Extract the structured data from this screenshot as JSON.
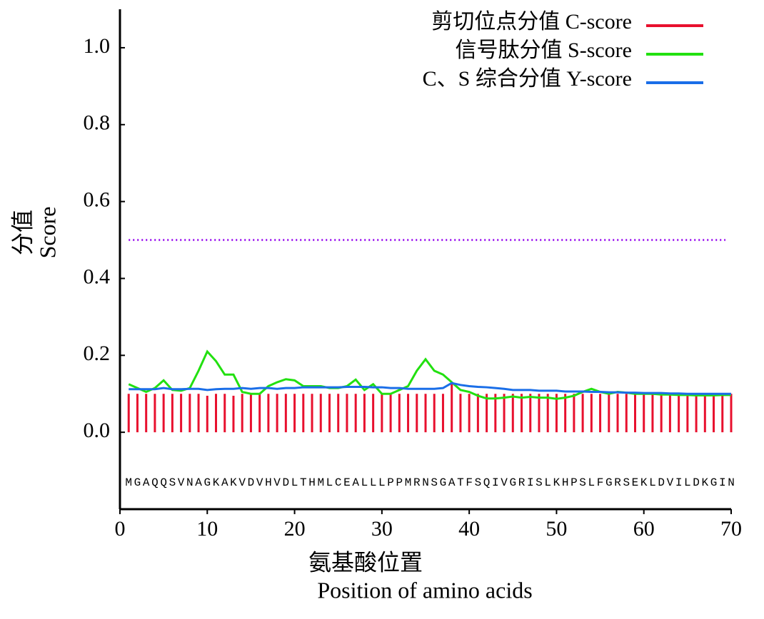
{
  "chart_data": {
    "type": "signal-peptide",
    "ylabel": [
      "分值",
      "Score"
    ],
    "xlabel": [
      "氨基酸位置",
      "Position of amino acids"
    ],
    "x": [
      1,
      2,
      3,
      4,
      5,
      6,
      7,
      8,
      9,
      10,
      11,
      12,
      13,
      14,
      15,
      16,
      17,
      18,
      19,
      20,
      21,
      22,
      23,
      24,
      25,
      26,
      27,
      28,
      29,
      30,
      31,
      32,
      33,
      34,
      35,
      36,
      37,
      38,
      39,
      40,
      41,
      42,
      43,
      44,
      45,
      46,
      47,
      48,
      49,
      50,
      51,
      52,
      53,
      54,
      55,
      56,
      57,
      58,
      59,
      60,
      61,
      62,
      63,
      64,
      65,
      66,
      67,
      68,
      69,
      70
    ],
    "residues": [
      "M",
      "G",
      "A",
      "Q",
      "Q",
      "S",
      "V",
      "N",
      "A",
      "G",
      "K",
      "A",
      "K",
      "V",
      "D",
      "V",
      "H",
      "V",
      "D",
      "L",
      "T",
      "H",
      "M",
      "L",
      "C",
      "E",
      "A",
      "L",
      "L",
      "L",
      "P",
      "P",
      "M",
      "R",
      "N",
      "S",
      "G",
      "A",
      "T",
      "F",
      "S",
      "Q",
      "I",
      "V",
      "G",
      "R",
      "I",
      "S",
      "L",
      "K",
      "H",
      "P",
      "S",
      "L",
      "F",
      "G",
      "R",
      "S",
      "E",
      "K",
      "L",
      "D",
      "V",
      "I",
      "L",
      "D",
      "K",
      "G",
      "I",
      "N"
    ],
    "series": [
      {
        "name": "剪切位点分值 C-score",
        "color": "#e8102e",
        "style": "bars",
        "values": [
          0.1,
          0.1,
          0.1,
          0.1,
          0.1,
          0.1,
          0.1,
          0.1,
          0.1,
          0.095,
          0.1,
          0.1,
          0.095,
          0.1,
          0.1,
          0.1,
          0.1,
          0.1,
          0.1,
          0.1,
          0.1,
          0.1,
          0.1,
          0.1,
          0.1,
          0.1,
          0.1,
          0.1,
          0.1,
          0.1,
          0.1,
          0.1,
          0.1,
          0.1,
          0.1,
          0.1,
          0.1,
          0.13,
          0.1,
          0.1,
          0.1,
          0.1,
          0.1,
          0.1,
          0.1,
          0.1,
          0.1,
          0.1,
          0.1,
          0.1,
          0.1,
          0.1,
          0.1,
          0.1,
          0.1,
          0.1,
          0.1,
          0.1,
          0.1,
          0.1,
          0.1,
          0.1,
          0.1,
          0.1,
          0.1,
          0.1,
          0.1,
          0.1,
          0.1,
          0.1
        ]
      },
      {
        "name": "信号肽分值 S-score",
        "color": "#22e010",
        "style": "line",
        "values": [
          0.125,
          0.115,
          0.105,
          0.115,
          0.135,
          0.11,
          0.108,
          0.115,
          0.16,
          0.21,
          0.185,
          0.15,
          0.15,
          0.105,
          0.1,
          0.1,
          0.12,
          0.13,
          0.138,
          0.135,
          0.12,
          0.12,
          0.12,
          0.115,
          0.115,
          0.12,
          0.137,
          0.11,
          0.125,
          0.1,
          0.1,
          0.11,
          0.12,
          0.16,
          0.19,
          0.16,
          0.15,
          0.13,
          0.11,
          0.105,
          0.095,
          0.088,
          0.088,
          0.09,
          0.093,
          0.09,
          0.092,
          0.09,
          0.09,
          0.087,
          0.09,
          0.095,
          0.105,
          0.113,
          0.105,
          0.1,
          0.105,
          0.103,
          0.1,
          0.1,
          0.1,
          0.098,
          0.098,
          0.097,
          0.097,
          0.096,
          0.096,
          0.096,
          0.097,
          0.097
        ]
      },
      {
        "name": "C、S 综合分值 Y-score",
        "color": "#1a6ee8",
        "style": "line",
        "values": [
          0.112,
          0.112,
          0.112,
          0.112,
          0.115,
          0.112,
          0.112,
          0.113,
          0.113,
          0.11,
          0.112,
          0.113,
          0.113,
          0.115,
          0.113,
          0.115,
          0.115,
          0.113,
          0.115,
          0.115,
          0.117,
          0.117,
          0.117,
          0.117,
          0.117,
          0.118,
          0.118,
          0.118,
          0.117,
          0.117,
          0.115,
          0.115,
          0.113,
          0.113,
          0.113,
          0.113,
          0.115,
          0.128,
          0.123,
          0.12,
          0.118,
          0.117,
          0.115,
          0.113,
          0.11,
          0.11,
          0.11,
          0.108,
          0.108,
          0.108,
          0.106,
          0.106,
          0.106,
          0.105,
          0.105,
          0.104,
          0.104,
          0.103,
          0.103,
          0.102,
          0.102,
          0.102,
          0.101,
          0.101,
          0.1,
          0.1,
          0.1,
          0.1,
          0.1,
          0.1
        ]
      }
    ],
    "threshold": 0.5,
    "threshold_color": "#a020f0",
    "xlim": [
      0,
      70
    ],
    "xticks": [
      0,
      10,
      20,
      30,
      40,
      50,
      60,
      70
    ],
    "ylim": [
      -0.2,
      1.1
    ],
    "yticks": [
      {
        "value": 0,
        "label": "0.0"
      },
      0.2,
      0.4,
      0.6,
      0.8,
      {
        "value": 1,
        "label": "1.0"
      }
    ]
  }
}
